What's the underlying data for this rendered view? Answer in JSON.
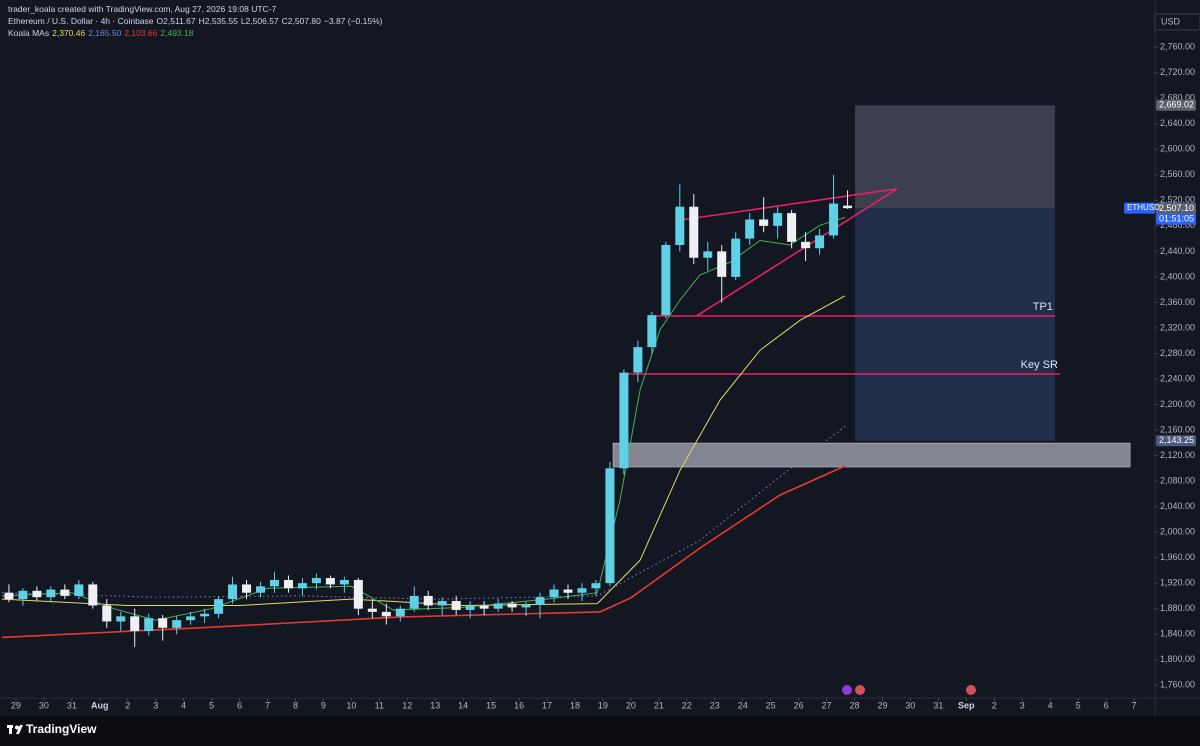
{
  "header": {
    "credit": "trader_koala created with TradingView.com, Aug 27, 2026 19:08 UTC-7",
    "symbol": "Ethereum / U.S. Dollar · 4h · Coinbase",
    "ohlc": [
      "O2,511.67",
      "H2,535.55",
      "L2,506.57",
      "C2,507.80",
      "−3.87 (−0.15%)"
    ],
    "indicator": "Koala MAs"
  },
  "chart_data": {
    "type": "candlestick",
    "currency": "USD",
    "up_color": "#5fd0e6",
    "down_color": "#eef0f5",
    "x": [
      -0.25,
      0.25,
      0.75,
      1.25,
      1.75,
      2.25,
      2.75,
      3.25,
      3.75,
      4.25,
      4.75,
      5.25,
      5.75,
      6.25,
      6.75,
      7.25,
      7.75,
      8.25,
      8.75,
      9.25,
      9.75,
      10.25,
      10.75,
      11.25,
      11.75,
      12.25,
      12.75,
      13.25,
      13.75,
      14.25,
      14.75,
      15.25,
      15.75,
      16.25,
      16.75,
      17.25,
      17.75,
      18.25,
      18.75,
      19.25,
      19.75,
      20.25,
      20.75,
      21.25,
      21.75,
      22.25,
      22.75,
      23.25,
      23.75,
      24.25,
      24.75,
      25.25,
      25.75,
      26.25,
      26.75,
      27.25,
      27.75,
      28.25,
      28.75,
      29.25,
      29.75
    ],
    "open": [
      1905,
      1895,
      1908,
      1898,
      1910,
      1900,
      1918,
      1885,
      1860,
      1868,
      1845,
      1865,
      1850,
      1862,
      1868,
      1872,
      1895,
      1918,
      1905,
      1915,
      1925,
      1912,
      1920,
      1928,
      1918,
      1925,
      1880,
      1875,
      1868,
      1880,
      1900,
      1885,
      1892,
      1878,
      1885,
      1880,
      1888,
      1882,
      1886,
      1898,
      1910,
      1905,
      1912,
      1920,
      2100,
      2250,
      2290,
      2340,
      2450,
      2510,
      2430,
      2440,
      2400,
      2460,
      2490,
      2480,
      2500,
      2455,
      2445,
      2465,
      2511.67
    ],
    "high": [
      1918,
      1912,
      1915,
      1915,
      1918,
      1925,
      1922,
      1895,
      1875,
      1880,
      1872,
      1870,
      1868,
      1875,
      1880,
      1900,
      1930,
      1925,
      1922,
      1938,
      1932,
      1928,
      1935,
      1932,
      1930,
      1928,
      1895,
      1888,
      1885,
      1915,
      1908,
      1898,
      1900,
      1892,
      1892,
      1895,
      1892,
      1890,
      1905,
      1918,
      1918,
      1920,
      1925,
      2110,
      2255,
      2300,
      2345,
      2455,
      2545,
      2530,
      2455,
      2450,
      2470,
      2500,
      2525,
      2510,
      2505,
      2470,
      2475,
      2560,
      2535.55
    ],
    "low": [
      1890,
      1885,
      1893,
      1890,
      1895,
      1895,
      1880,
      1850,
      1845,
      1820,
      1838,
      1830,
      1840,
      1855,
      1858,
      1865,
      1888,
      1895,
      1898,
      1905,
      1905,
      1900,
      1910,
      1912,
      1905,
      1870,
      1865,
      1855,
      1860,
      1875,
      1878,
      1870,
      1870,
      1865,
      1870,
      1875,
      1875,
      1868,
      1865,
      1890,
      1895,
      1892,
      1900,
      1915,
      2090,
      2235,
      2280,
      2335,
      2440,
      2420,
      2410,
      2360,
      2395,
      2450,
      2470,
      2460,
      2445,
      2425,
      2435,
      2460,
      2506.57
    ],
    "close": [
      1895,
      1908,
      1898,
      1910,
      1900,
      1918,
      1885,
      1860,
      1868,
      1845,
      1865,
      1850,
      1862,
      1868,
      1872,
      1895,
      1918,
      1905,
      1915,
      1925,
      1912,
      1920,
      1928,
      1918,
      1925,
      1880,
      1875,
      1868,
      1880,
      1900,
      1885,
      1892,
      1878,
      1885,
      1880,
      1888,
      1882,
      1886,
      1898,
      1910,
      1905,
      1912,
      1920,
      2100,
      2250,
      2290,
      2340,
      2450,
      2510,
      2430,
      2440,
      2400,
      2460,
      2490,
      2480,
      2500,
      2455,
      2445,
      2465,
      2515,
      2507.8
    ],
    "series": [
      {
        "color": "#e6d96a",
        "style": "solid",
        "legend_label": "2,370.46",
        "x": [
          -0.5,
          4,
          8,
          12,
          16,
          20.8,
          22.33,
          23.76,
          25.19,
          26.62,
          28.05,
          29.66
        ],
        "values": [
          1895,
          1885,
          1885,
          1895,
          1885,
          1888,
          1956,
          2097,
          2207,
          2285,
          2332,
          2370.46
        ]
      },
      {
        "color": "#7b83d9",
        "style": "dotted",
        "legend_label": "2,165.50",
        "x": [
          -0.5,
          5,
          10,
          15,
          20.8,
          24.47,
          28.05,
          29.66
        ],
        "values": [
          1905,
          1898,
          1900,
          1895,
          1900,
          1987,
          2112,
          2165.5
        ]
      },
      {
        "color": "#e53935",
        "style": "solid",
        "legend_label": "2,103.66",
        "x": [
          -0.5,
          6.58,
          13.74,
          20.9,
          22,
          24.47,
          27.33,
          29.66
        ],
        "values": [
          1835,
          1850,
          1867,
          1875,
          1897,
          1975,
          2058,
          2103.66
        ]
      },
      {
        "color": "#4caf50",
        "style": "solid",
        "legend_label": "2,493.18",
        "x": [
          -0.5,
          2,
          3.5,
          5,
          7,
          9,
          12,
          13.5,
          16,
          19,
          20.8,
          21.61,
          22.33,
          23.04,
          23.76,
          24.47,
          25.55,
          26.62,
          27.69,
          28.77,
          29.66
        ],
        "values": [
          1900,
          1905,
          1880,
          1862,
          1880,
          1912,
          1915,
          1878,
          1882,
          1895,
          1905,
          2050,
          2223,
          2317,
          2364,
          2403,
          2423,
          2457,
          2450,
          2481,
          2493.18
        ]
      }
    ],
    "levels": [
      {
        "label": "TP1",
        "value": 2338.7,
        "x": [
          22.86,
          37.17
        ]
      },
      {
        "label": "Key SR",
        "value": 2247.8,
        "x": [
          21.86,
          37.35
        ]
      }
    ],
    "level_color": "#e91e63",
    "wedge": {
      "x": [
        23.76,
        31.52,
        24.36
      ],
      "values": [
        2489,
        2538,
        2339
      ]
    },
    "position": {
      "x": [
        30.02,
        37.17
      ],
      "target": 2669.02,
      "entry": 2507.8,
      "stop": 2143.25
    },
    "zone": {
      "x": [
        21.36,
        39.86
      ],
      "low": 2102,
      "high": 2139.6
    },
    "price_badges": [
      {
        "value": 2669.02,
        "label": "2,669.02",
        "color": "#5d606b"
      },
      {
        "value": 2507.8,
        "label": "2,507.80",
        "color": "#2962ff"
      },
      {
        "value": 2507.1,
        "label": "2,507.10",
        "color": "#5d606b"
      },
      {
        "value": 2143.25,
        "label": "2,143.25",
        "color": "#4a5a80"
      }
    ],
    "symbol_tag": "ETHUSD",
    "countdown": "01:51:05",
    "xlim": [
      -0.57,
      40.75
    ],
    "xticks": [
      {
        "value": 0,
        "label": "29"
      },
      {
        "value": 1,
        "label": "30"
      },
      {
        "value": 2,
        "label": "31"
      },
      {
        "value": 3,
        "label": "Aug"
      },
      {
        "value": 4,
        "label": "2"
      },
      {
        "value": 5,
        "label": "3"
      },
      {
        "value": 6,
        "label": "4"
      },
      {
        "value": 7,
        "label": "5"
      },
      {
        "value": 8,
        "label": "6"
      },
      {
        "value": 9,
        "label": "7"
      },
      {
        "value": 10,
        "label": "8"
      },
      {
        "value": 11,
        "label": "9"
      },
      {
        "value": 12,
        "label": "10"
      },
      {
        "value": 13,
        "label": "11"
      },
      {
        "value": 14,
        "label": "12"
      },
      {
        "value": 15,
        "label": "13"
      },
      {
        "value": 16,
        "label": "14"
      },
      {
        "value": 17,
        "label": "15"
      },
      {
        "value": 18,
        "label": "16"
      },
      {
        "value": 19,
        "label": "17"
      },
      {
        "value": 20,
        "label": "18"
      },
      {
        "value": 21,
        "label": "19"
      },
      {
        "value": 22,
        "label": "20"
      },
      {
        "value": 23,
        "label": "21"
      },
      {
        "value": 24,
        "label": "22"
      },
      {
        "value": 25,
        "label": "23"
      },
      {
        "value": 26,
        "label": "24"
      },
      {
        "value": 27,
        "label": "25"
      },
      {
        "value": 28,
        "label": "26"
      },
      {
        "value": 29,
        "label": "27"
      },
      {
        "value": 30,
        "label": "28"
      },
      {
        "value": 31,
        "label": "29"
      },
      {
        "value": 32,
        "label": "30"
      },
      {
        "value": 33,
        "label": "31"
      },
      {
        "value": 34,
        "label": "Sep"
      },
      {
        "value": 35,
        "label": "2"
      },
      {
        "value": 36,
        "label": "3"
      },
      {
        "value": 37,
        "label": "4"
      },
      {
        "value": 38,
        "label": "5"
      },
      {
        "value": 39,
        "label": "6"
      },
      {
        "value": 40,
        "label": "7"
      }
    ],
    "ylim": [
      1740,
      2834
    ],
    "yticks": [
      {
        "value": 1760,
        "label": "1,760.00"
      },
      {
        "value": 1800,
        "label": "1,800.00"
      },
      {
        "value": 1840,
        "label": "1,840.00"
      },
      {
        "value": 1880,
        "label": "1,880.00"
      },
      {
        "value": 1920,
        "label": "1,920.00"
      },
      {
        "value": 1960,
        "label": "1,960.00"
      },
      {
        "value": 2000,
        "label": "2,000.00"
      },
      {
        "value": 2040,
        "label": "2,040.00"
      },
      {
        "value": 2080,
        "label": "2,080.00"
      },
      {
        "value": 2120,
        "label": "2,120.00"
      },
      {
        "value": 2160,
        "label": "2,160.00"
      },
      {
        "value": 2200,
        "label": "2,200.00"
      },
      {
        "value": 2240,
        "label": "2,240.00"
      },
      {
        "value": 2280,
        "label": "2,280.00"
      },
      {
        "value": 2320,
        "label": "2,320.00"
      },
      {
        "value": 2360,
        "label": "2,360.00"
      },
      {
        "value": 2400,
        "label": "2,400.00"
      },
      {
        "value": 2440,
        "label": "2,440.00"
      },
      {
        "value": 2480,
        "label": "2,480.00"
      },
      {
        "value": 2520,
        "label": "2,520.00"
      },
      {
        "value": 2560,
        "label": "2,560.00"
      },
      {
        "value": 2600,
        "label": "2,600.00"
      },
      {
        "value": 2640,
        "label": "2,640.00"
      },
      {
        "value": 2680,
        "label": "2,680.00"
      },
      {
        "value": 2720,
        "label": "2,720.00"
      },
      {
        "value": 2760,
        "label": "2,760.00"
      }
    ],
    "grid": false
  },
  "footer": {
    "logo": "TradingView"
  }
}
